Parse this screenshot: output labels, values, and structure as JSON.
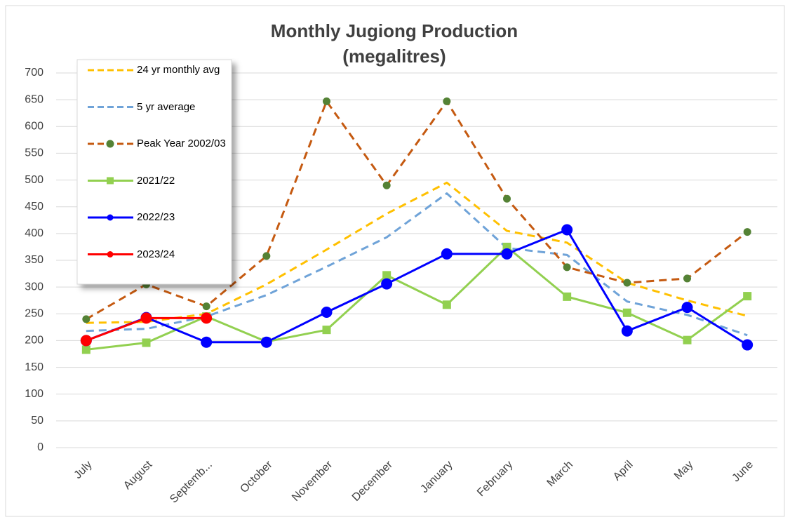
{
  "chart_data": {
    "type": "line",
    "title": "Monthly Jugiong Production",
    "subtitle": "(megalitres)",
    "categories": [
      "July",
      "August",
      "Septemb...",
      "October",
      "November",
      "December",
      "January",
      "February",
      "March",
      "April",
      "May",
      "June"
    ],
    "ylim": [
      0,
      700
    ],
    "yticks": [
      0,
      50,
      100,
      150,
      200,
      250,
      300,
      350,
      400,
      450,
      500,
      550,
      600,
      650,
      700
    ],
    "grid": true,
    "legend": "upper left",
    "series": [
      {
        "name": "24 yr monthly avg",
        "color": "#FFC000",
        "dashed": true,
        "marker": null,
        "values": [
          233,
          235,
          250,
          305,
          370,
          437,
          495,
          405,
          383,
          308,
          275,
          246
        ]
      },
      {
        "name": "5 yr average",
        "color": "#6FA3D8",
        "dashed": true,
        "marker": null,
        "values": [
          218,
          222,
          245,
          285,
          338,
          393,
          475,
          373,
          360,
          273,
          248,
          210
        ]
      },
      {
        "name": "Peak Year 2002/03",
        "color": "#C55A11",
        "dashed": true,
        "marker": "circle",
        "marker_color": "#548235",
        "values": [
          240,
          305,
          264,
          358,
          647,
          490,
          647,
          465,
          337,
          308,
          316,
          403
        ]
      },
      {
        "name": "2021/22",
        "color": "#92D050",
        "dashed": false,
        "marker": "square",
        "marker_color": "#92D050",
        "values": [
          183,
          196,
          245,
          198,
          220,
          322,
          267,
          375,
          282,
          252,
          201,
          283
        ]
      },
      {
        "name": "2022/23",
        "color": "#0000FF",
        "dashed": false,
        "marker": "circle",
        "marker_color": "#0000FF",
        "values": [
          200,
          243,
          197,
          197,
          253,
          306,
          362,
          362,
          407,
          218,
          262,
          192
        ]
      },
      {
        "name": "2023/24",
        "color": "#FF0000",
        "dashed": false,
        "marker": "circle",
        "marker_color": "#FF0000",
        "values": [
          200,
          242,
          242,
          null,
          null,
          null,
          null,
          null,
          null,
          null,
          null,
          null
        ]
      }
    ]
  }
}
